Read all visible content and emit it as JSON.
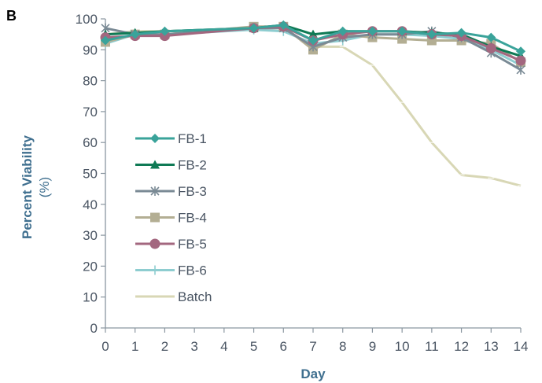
{
  "panel_label": "B",
  "chart_data": {
    "type": "line",
    "xlabel": "Day",
    "ylabel": "Percent Viability",
    "ylabel_unit": "(%)",
    "x": [
      0,
      1,
      2,
      3,
      4,
      5,
      6,
      7,
      8,
      9,
      10,
      11,
      12,
      13,
      14
    ],
    "x_ticks": [
      "0",
      "1",
      "2",
      "3",
      "4",
      "5",
      "6",
      "7",
      "8",
      "9",
      "10",
      "11",
      "12",
      "13",
      "14"
    ],
    "xlim": [
      0,
      14
    ],
    "y_ticks": [
      "0",
      "10",
      "20",
      "30",
      "40",
      "50",
      "60",
      "70",
      "80",
      "90",
      "100"
    ],
    "ylim": [
      0,
      100
    ],
    "grid": false,
    "legend": "left-middle",
    "series": [
      {
        "name": "FB-1",
        "color": "#3aa39a",
        "marker": "diamond",
        "points": [
          [
            0,
            93
          ],
          [
            1,
            95
          ],
          [
            2,
            96
          ],
          [
            5,
            97
          ],
          [
            6,
            98
          ],
          [
            7,
            93
          ],
          [
            8,
            96
          ],
          [
            9,
            96
          ],
          [
            10,
            96
          ],
          [
            11,
            95
          ],
          [
            12,
            95.5
          ],
          [
            13,
            94
          ],
          [
            14,
            89.5
          ]
        ]
      },
      {
        "name": "FB-2",
        "color": "#0f7a55",
        "marker": "triangle",
        "points": [
          [
            0,
            95
          ],
          [
            1,
            95.5
          ],
          [
            2,
            96
          ],
          [
            5,
            97
          ],
          [
            6,
            98
          ],
          [
            7,
            95
          ],
          [
            8,
            96
          ],
          [
            9,
            96
          ],
          [
            10,
            96
          ],
          [
            11,
            95.5
          ],
          [
            12,
            95
          ],
          [
            13,
            91
          ],
          [
            14,
            88
          ]
        ]
      },
      {
        "name": "FB-3",
        "color": "#7a8a95",
        "marker": "star",
        "points": [
          [
            0,
            97
          ],
          [
            1,
            95
          ],
          [
            2,
            95
          ],
          [
            5,
            97
          ],
          [
            6,
            97
          ],
          [
            7,
            91
          ],
          [
            8,
            94
          ],
          [
            9,
            95
          ],
          [
            10,
            95
          ],
          [
            11,
            96
          ],
          [
            12,
            94
          ],
          [
            13,
            89
          ],
          [
            14,
            83.5
          ]
        ]
      },
      {
        "name": "FB-4",
        "color": "#b3ae93",
        "marker": "square",
        "points": [
          [
            0,
            92.5
          ],
          [
            1,
            95
          ],
          [
            2,
            95
          ],
          [
            5,
            97.5
          ],
          [
            6,
            97.5
          ],
          [
            7,
            90
          ],
          [
            8,
            95
          ],
          [
            9,
            94
          ],
          [
            10,
            93.5
          ],
          [
            11,
            93
          ],
          [
            12,
            93
          ],
          [
            13,
            92
          ],
          [
            14,
            86
          ]
        ]
      },
      {
        "name": "FB-5",
        "color": "#a3677f",
        "marker": "circle",
        "points": [
          [
            0,
            94
          ],
          [
            1,
            94.5
          ],
          [
            2,
            94.5
          ],
          [
            5,
            97
          ],
          [
            6,
            97.5
          ],
          [
            7,
            93
          ],
          [
            8,
            95
          ],
          [
            9,
            96
          ],
          [
            10,
            96
          ],
          [
            11,
            95
          ],
          [
            12,
            94.5
          ],
          [
            13,
            90.5
          ],
          [
            14,
            86.5
          ]
        ]
      },
      {
        "name": "FB-6",
        "color": "#8ecdd0",
        "marker": "plus",
        "points": [
          [
            0,
            92
          ],
          [
            1,
            95
          ],
          [
            2,
            95
          ],
          [
            5,
            96.5
          ],
          [
            6,
            96
          ],
          [
            7,
            92
          ],
          [
            8,
            93
          ],
          [
            9,
            95
          ],
          [
            10,
            95
          ],
          [
            11,
            94.5
          ],
          [
            12,
            93.5
          ],
          [
            13,
            90
          ],
          [
            14,
            85
          ]
        ]
      },
      {
        "name": "Batch",
        "color": "#d8d7b5",
        "marker": "dash",
        "points": [
          [
            0,
            95
          ],
          [
            1,
            96
          ],
          [
            2,
            96
          ],
          [
            5,
            97
          ],
          [
            6,
            97
          ],
          [
            7,
            91
          ],
          [
            8,
            91
          ],
          [
            9,
            85
          ],
          [
            10,
            73
          ],
          [
            11,
            60
          ],
          [
            12,
            49.5
          ],
          [
            13,
            48.5
          ],
          [
            14,
            46
          ]
        ]
      }
    ]
  }
}
